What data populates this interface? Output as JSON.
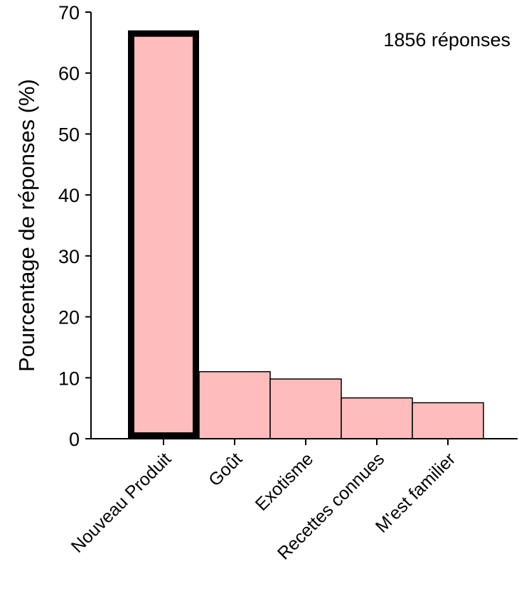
{
  "chart_data": {
    "type": "bar",
    "categories": [
      "Nouveau Produit",
      "Goût",
      "Exotisme",
      "Recettes connues",
      "M'est familier"
    ],
    "values": [
      67,
      11,
      9.8,
      6.7,
      5.9
    ],
    "title": "",
    "xlabel": "",
    "ylabel": "Pourcentage de réponses (%)",
    "ylim": [
      0,
      70
    ],
    "yticks": [
      "0",
      "10",
      "20",
      "30",
      "40",
      "50",
      "60",
      "70"
    ],
    "annotation": "1856 réponses",
    "highlight_index": 0,
    "bar_color": "#ffbcbc",
    "edge_color": "#000000",
    "grid": false,
    "legend": "none"
  }
}
